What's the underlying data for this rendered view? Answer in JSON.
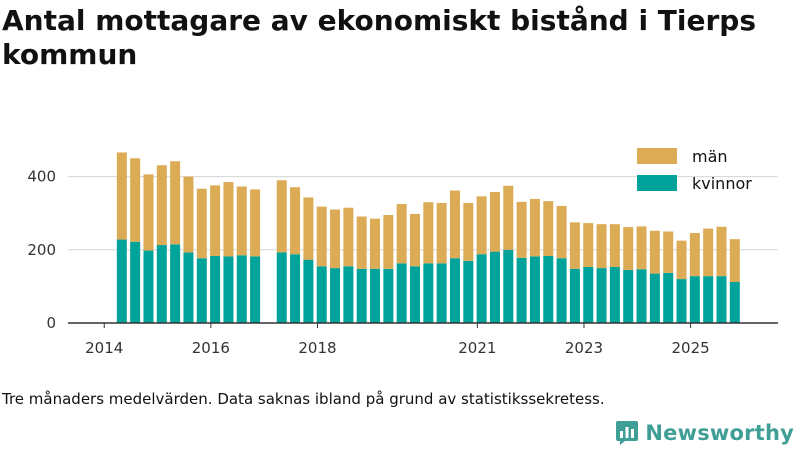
{
  "title": "Antal mottagare av ekonomiskt bistånd i Tierps kommun",
  "caption": "Tre månaders medelvärden. Data saknas ibland på grund av statistikssekretess.",
  "brand": {
    "name": "Newsworthy",
    "icon": "newsworthy-logo-icon"
  },
  "colors": {
    "men": "#dcab55",
    "women": "#00a39a",
    "grid": "#d6d6d6",
    "axis": "#333333"
  },
  "chart_data": {
    "type": "bar",
    "stacked": true,
    "title": "Antal mottagare av ekonomiskt bistånd i Tierps kommun",
    "xlabel": "",
    "ylabel": "",
    "ylim": [
      0,
      500
    ],
    "y_ticks": [
      0,
      200,
      400
    ],
    "x_ticks": [
      {
        "label": "2014",
        "t": 2014.0
      },
      {
        "label": "2016",
        "t": 2016.0
      },
      {
        "label": "2018",
        "t": 2018.0
      },
      {
        "label": "2021",
        "t": 2021.0
      },
      {
        "label": "2023",
        "t": 2023.0
      },
      {
        "label": "2025",
        "t": 2025.0
      }
    ],
    "legend": {
      "position": "top-right",
      "entries": [
        "män",
        "kvinnor"
      ]
    },
    "categories": [
      "2014-05",
      "2014-08",
      "2014-11",
      "2015-02",
      "2015-05",
      "2015-08",
      "2015-11",
      "2016-02",
      "2016-05",
      "2016-08",
      "2016-11",
      "2017-02",
      "2017-05",
      "2017-08",
      "2017-11",
      "2018-02",
      "2018-05",
      "2018-08",
      "2018-11",
      "2019-02",
      "2019-05",
      "2019-08",
      "2019-11",
      "2020-02",
      "2020-05",
      "2020-08",
      "2020-11",
      "2021-02",
      "2021-05",
      "2021-08",
      "2021-11",
      "2022-02",
      "2022-05",
      "2022-08",
      "2022-11",
      "2023-02",
      "2023-05",
      "2023-08",
      "2023-11",
      "2024-02",
      "2024-05",
      "2024-08",
      "2024-11",
      "2025-02",
      "2025-05",
      "2025-08",
      "2025-11",
      "2026-02"
    ],
    "t": [
      2014.33,
      2014.58,
      2014.83,
      2015.08,
      2015.33,
      2015.58,
      2015.83,
      2016.08,
      2016.33,
      2016.58,
      2016.83,
      2017.08,
      2017.33,
      2017.58,
      2017.83,
      2018.08,
      2018.33,
      2018.58,
      2018.83,
      2019.08,
      2019.33,
      2019.58,
      2019.83,
      2020.08,
      2020.33,
      2020.58,
      2020.83,
      2021.08,
      2021.33,
      2021.58,
      2021.83,
      2022.08,
      2022.33,
      2022.58,
      2022.83,
      2023.08,
      2023.33,
      2023.58,
      2023.83,
      2024.08,
      2024.33,
      2024.58,
      2024.83,
      2025.08,
      2025.33,
      2025.58,
      2025.83,
      2026.08
    ],
    "series": [
      {
        "name": "kvinnor",
        "key": "women",
        "values": [
          228,
          222,
          198,
          213,
          215,
          193,
          177,
          183,
          182,
          185,
          182,
          null,
          193,
          188,
          173,
          155,
          150,
          155,
          148,
          148,
          148,
          163,
          155,
          163,
          163,
          177,
          170,
          188,
          195,
          200,
          178,
          182,
          183,
          177,
          148,
          153,
          150,
          153,
          145,
          147,
          135,
          137,
          120,
          128,
          128,
          128,
          112,
          null
        ]
      },
      {
        "name": "män",
        "key": "men",
        "values": [
          238,
          228,
          208,
          218,
          227,
          207,
          190,
          193,
          203,
          188,
          183,
          null,
          197,
          183,
          170,
          163,
          160,
          160,
          143,
          137,
          147,
          162,
          143,
          167,
          165,
          185,
          158,
          158,
          163,
          175,
          153,
          157,
          150,
          143,
          127,
          120,
          120,
          117,
          117,
          117,
          117,
          113,
          105,
          118,
          130,
          135,
          117,
          null
        ]
      }
    ]
  }
}
